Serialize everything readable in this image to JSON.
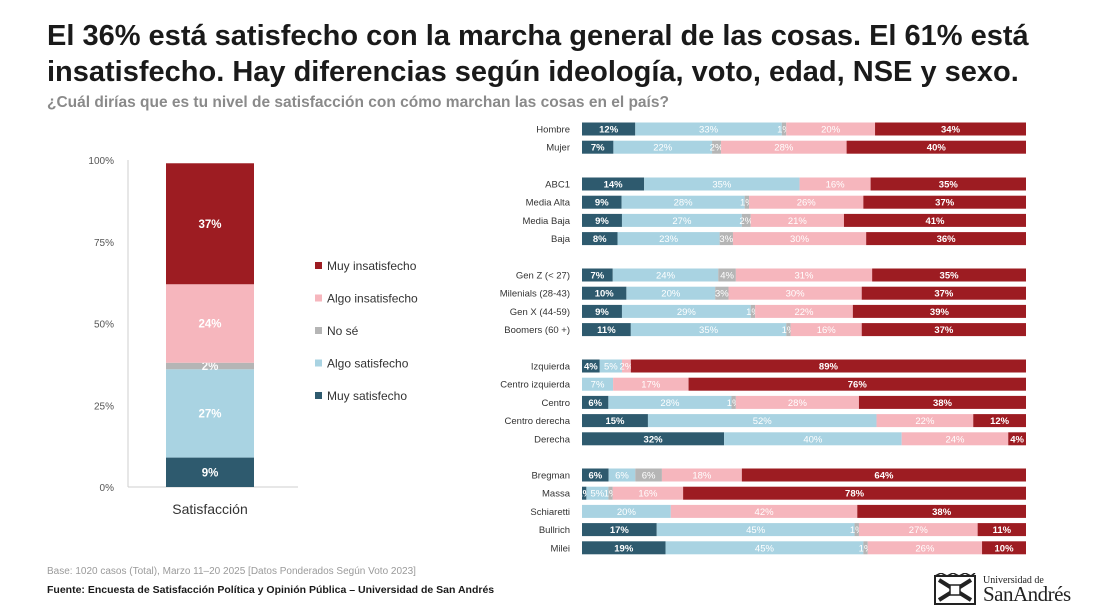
{
  "title": "El 36% está satisfecho con la marcha general de las cosas. El 61% está insatisfecho. Hay diferencias según ideología, voto, edad, NSE y sexo.",
  "subtitle": "¿Cuál dirías que es tu nivel de satisfacción con cómo marchan las cosas en el país?",
  "colors": {
    "muy_satisfecho": "#2e5a6e",
    "algo_satisfecho": "#a9d3e2",
    "no_se": "#b5b5b5",
    "algo_insatisfecho": "#f6b6bd",
    "muy_insatisfecho": "#9d1c22"
  },
  "chart_data": [
    {
      "type": "bar",
      "stacked": true,
      "categories": [
        "Satisfacción"
      ],
      "yticks": [
        "0%",
        "25%",
        "50%",
        "75%",
        "100%"
      ],
      "ylim": [
        0,
        100
      ],
      "series": [
        {
          "name": "Muy satisfecho",
          "key": "muy_satisfecho",
          "values": [
            9
          ],
          "labels": [
            "9%"
          ]
        },
        {
          "name": "Algo satisfecho",
          "key": "algo_satisfecho",
          "values": [
            27
          ],
          "labels": [
            "27%"
          ]
        },
        {
          "name": "No sé",
          "key": "no_se",
          "values": [
            2
          ],
          "labels": [
            "2%"
          ]
        },
        {
          "name": "Algo insatisfecho",
          "key": "algo_insatisfecho",
          "values": [
            24
          ],
          "labels": [
            "24%"
          ]
        },
        {
          "name": "Muy insatisfecho",
          "key": "muy_insatisfecho",
          "values": [
            37
          ],
          "labels": [
            "37%"
          ]
        }
      ],
      "legend": [
        "Muy insatisfecho",
        "Algo insatisfecho",
        "No sé",
        "Algo satisfecho",
        "Muy satisfecho"
      ],
      "legend_keys": [
        "muy_insatisfecho",
        "algo_insatisfecho",
        "no_se",
        "algo_satisfecho",
        "muy_satisfecho"
      ],
      "grid": false,
      "legend_position": "right"
    },
    {
      "type": "bar",
      "orientation": "horizontal",
      "stacked": true,
      "series_order": [
        "muy_satisfecho",
        "algo_satisfecho",
        "no_se",
        "algo_insatisfecho",
        "muy_insatisfecho"
      ],
      "groups": [
        {
          "rows": [
            {
              "label": "Hombre",
              "values": [
                12,
                33,
                1,
                20,
                34
              ]
            },
            {
              "label": "Mujer",
              "values": [
                7,
                22,
                2,
                28,
                40
              ]
            }
          ]
        },
        {
          "rows": [
            {
              "label": "ABC1",
              "values": [
                14,
                35,
                0,
                16,
                35
              ]
            },
            {
              "label": "Media Alta",
              "values": [
                9,
                28,
                1,
                26,
                37
              ]
            },
            {
              "label": "Media Baja",
              "values": [
                9,
                27,
                2,
                21,
                41
              ]
            },
            {
              "label": "Baja",
              "values": [
                8,
                23,
                3,
                30,
                36
              ]
            }
          ]
        },
        {
          "rows": [
            {
              "label": "Gen Z (< 27)",
              "values": [
                7,
                24,
                4,
                31,
                35
              ]
            },
            {
              "label": "Milenials (28-43)",
              "values": [
                10,
                20,
                3,
                30,
                37
              ]
            },
            {
              "label": "Gen X (44-59)",
              "values": [
                9,
                29,
                1,
                22,
                39
              ]
            },
            {
              "label": "Boomers (60 +)",
              "values": [
                11,
                35,
                1,
                16,
                37
              ]
            }
          ]
        },
        {
          "rows": [
            {
              "label": "Izquierda",
              "values": [
                4,
                5,
                0,
                2,
                89
              ]
            },
            {
              "label": "Centro izquierda",
              "values": [
                0,
                7,
                0,
                17,
                76
              ]
            },
            {
              "label": "Centro",
              "values": [
                6,
                28,
                1,
                28,
                38
              ]
            },
            {
              "label": "Centro derecha",
              "values": [
                15,
                52,
                0,
                22,
                12
              ]
            },
            {
              "label": "Derecha",
              "values": [
                32,
                40,
                0,
                24,
                4
              ]
            }
          ]
        },
        {
          "rows": [
            {
              "label": "Bregman",
              "values": [
                6,
                6,
                6,
                18,
                64
              ]
            },
            {
              "label": "Massa",
              "values": [
                1,
                5,
                1,
                16,
                78
              ]
            },
            {
              "label": "Schiaretti",
              "values": [
                0,
                20,
                0,
                42,
                38
              ]
            },
            {
              "label": "Bullrich",
              "values": [
                17,
                45,
                1,
                27,
                11
              ]
            },
            {
              "label": "Milei",
              "values": [
                19,
                45,
                1,
                26,
                10
              ]
            }
          ]
        }
      ],
      "xlim": [
        0,
        100
      ],
      "grid": false
    }
  ],
  "footer": {
    "base": "Base: 1020 casos (Total), Marzo 11–20 2025 [Datos Ponderados Según Voto 2023]",
    "source": "Fuente: Encuesta de Satisfacción Política y Opinión Pública – Universidad de San Andrés"
  },
  "logo": {
    "small": "Universidad de",
    "big": "SanAndrés"
  }
}
